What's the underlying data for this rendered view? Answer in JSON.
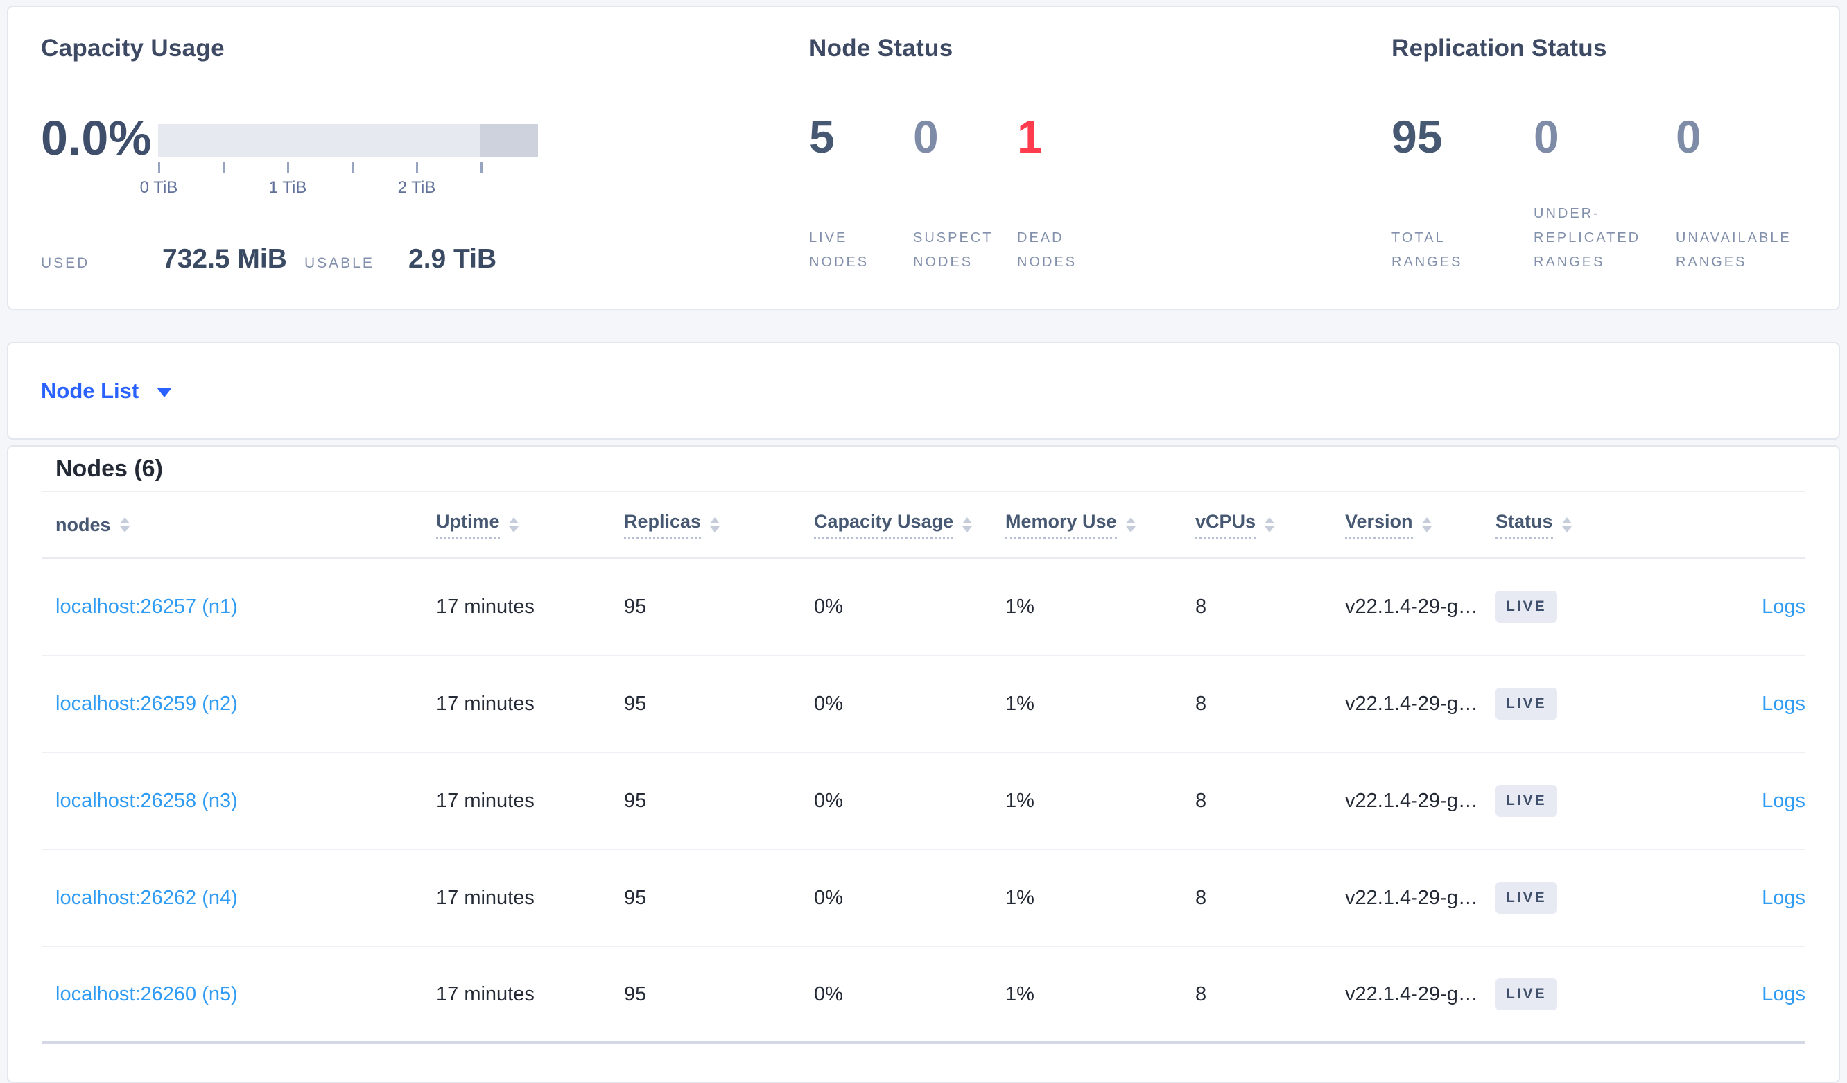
{
  "summary": {
    "capacity": {
      "title": "Capacity Usage",
      "percent": "0.0%",
      "tick_labels": [
        "0 TiB",
        "1 TiB",
        "2 TiB"
      ],
      "used_label": "USED",
      "used_value": "732.5 MiB",
      "usable_label": "USABLE",
      "usable_value": "2.9 TiB"
    },
    "node_status": {
      "title": "Node Status",
      "stats": [
        {
          "value": "5",
          "label": "LIVE\nNODES",
          "variant": "dark"
        },
        {
          "value": "0",
          "label": "SUSPECT\nNODES",
          "variant": "light"
        },
        {
          "value": "1",
          "label": "DEAD\nNODES",
          "variant": "danger"
        }
      ]
    },
    "replication": {
      "title": "Replication Status",
      "stats": [
        {
          "value": "95",
          "label": "TOTAL\nRANGES",
          "variant": "dark"
        },
        {
          "value": "0",
          "label": "UNDER-\nREPLICATED\nRANGES",
          "variant": "light"
        },
        {
          "value": "0",
          "label": "UNAVAILABLE\nRANGES",
          "variant": "light"
        }
      ]
    }
  },
  "view_selector": {
    "label": "Node List",
    "icon": "caret-down-icon"
  },
  "nodes_table": {
    "title": "Nodes (6)",
    "columns": [
      {
        "key": "node",
        "label": "nodes",
        "sortable": true,
        "tooltip_underline": false
      },
      {
        "key": "uptime",
        "label": "Uptime",
        "sortable": true,
        "tooltip_underline": true
      },
      {
        "key": "replicas",
        "label": "Replicas",
        "sortable": true,
        "tooltip_underline": true
      },
      {
        "key": "capacity_usage",
        "label": "Capacity Usage",
        "sortable": true,
        "tooltip_underline": true
      },
      {
        "key": "memory_use",
        "label": "Memory Use",
        "sortable": true,
        "tooltip_underline": true
      },
      {
        "key": "vcpus",
        "label": "vCPUs",
        "sortable": true,
        "tooltip_underline": true
      },
      {
        "key": "version",
        "label": "Version",
        "sortable": true,
        "tooltip_underline": true
      },
      {
        "key": "status",
        "label": "Status",
        "sortable": true,
        "tooltip_underline": true
      }
    ],
    "rows": [
      {
        "node": "localhost:26257 (n1)",
        "uptime": "17 minutes",
        "replicas": "95",
        "capacity_usage": "0%",
        "memory_use": "1%",
        "vcpus": "8",
        "version": "v22.1.4-29-g…",
        "status": "LIVE",
        "logs_label": "Logs"
      },
      {
        "node": "localhost:26259 (n2)",
        "uptime": "17 minutes",
        "replicas": "95",
        "capacity_usage": "0%",
        "memory_use": "1%",
        "vcpus": "8",
        "version": "v22.1.4-29-g…",
        "status": "LIVE",
        "logs_label": "Logs"
      },
      {
        "node": "localhost:26258 (n3)",
        "uptime": "17 minutes",
        "replicas": "95",
        "capacity_usage": "0%",
        "memory_use": "1%",
        "vcpus": "8",
        "version": "v22.1.4-29-g…",
        "status": "LIVE",
        "logs_label": "Logs"
      },
      {
        "node": "localhost:26262 (n4)",
        "uptime": "17 minutes",
        "replicas": "95",
        "capacity_usage": "0%",
        "memory_use": "1%",
        "vcpus": "8",
        "version": "v22.1.4-29-g…",
        "status": "LIVE",
        "logs_label": "Logs"
      },
      {
        "node": "localhost:26260 (n5)",
        "uptime": "17 minutes",
        "replicas": "95",
        "capacity_usage": "0%",
        "memory_use": "1%",
        "vcpus": "8",
        "version": "v22.1.4-29-g…",
        "status": "LIVE",
        "logs_label": "Logs"
      }
    ]
  },
  "icons": {
    "caret_down": "caret-down-icon",
    "sort": "sort-carets-icon"
  },
  "colors": {
    "accent_blue": "#2962ff",
    "link_blue": "#2f9bf3",
    "danger_red": "#ff3b4e",
    "dark_slate": "#475872",
    "muted_light_slate": "#7f8ca8",
    "muted_label": "#8290ac",
    "badge_bg": "#e7eaf3",
    "bar_light": "#e7e9f1",
    "bar_dark": "#ced2dc",
    "page_bg": "#f4f6fa"
  }
}
